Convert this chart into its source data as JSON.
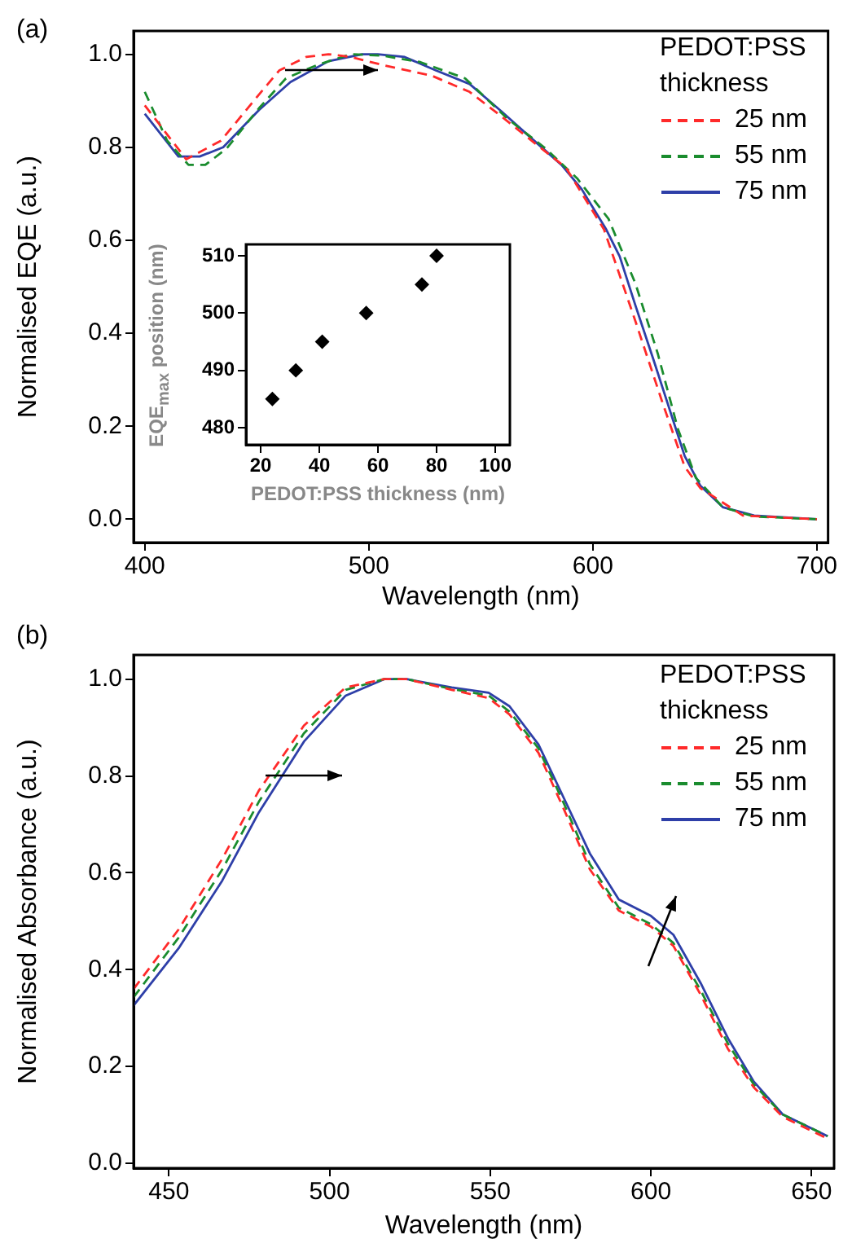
{
  "chart_data": [
    {
      "type": "line",
      "annotations": [
        "(a)"
      ],
      "xlabel": "Wavelength (nm)",
      "ylabel": "Normalised EQE (a.u.)",
      "legend_title": "PEDOT:PSS thickness",
      "legend": "top right",
      "grid": false,
      "xlim": [
        395,
        705
      ],
      "xticks": [
        400,
        500,
        600,
        700
      ],
      "ylim": [
        -0.05,
        1.05
      ],
      "yticks": [
        {
          "value": 0,
          "label": "0.0"
        },
        {
          "value": 0.2,
          "label": "0.2"
        },
        {
          "value": 0.4,
          "label": "0.4"
        },
        {
          "value": 0.6,
          "label": "0.6"
        },
        {
          "value": 0.8,
          "label": "0.8"
        },
        {
          "value": 1,
          "label": "1.0"
        }
      ],
      "series": [
        {
          "name": "25 nm",
          "color": "#ff2a2a",
          "line_style": "dashed",
          "x": [
            400,
            418.5,
            434,
            448,
            460,
            472,
            482,
            492,
            506,
            528,
            545,
            559,
            574,
            588,
            605,
            619,
            631,
            641,
            648,
            667,
            700
          ],
          "values": [
            0.89,
            0.774,
            0.814,
            0.896,
            0.965,
            0.994,
            1.0,
            0.994,
            0.977,
            0.954,
            0.919,
            0.867,
            0.809,
            0.756,
            0.623,
            0.426,
            0.252,
            0.113,
            0.067,
            0.008,
            0
          ]
        },
        {
          "name": "55 nm",
          "color": "#1a8c2e",
          "line_style": "dashed",
          "x": [
            400,
            410,
            419.5,
            427,
            436.5,
            451,
            463,
            477,
            492,
            506,
            523,
            543,
            562,
            579,
            593,
            607,
            619,
            629,
            638,
            646,
            658,
            672,
            700
          ],
          "values": [
            0.919,
            0.814,
            0.762,
            0.762,
            0.797,
            0.884,
            0.948,
            0.977,
            1.0,
            0.997,
            0.983,
            0.948,
            0.861,
            0.797,
            0.733,
            0.646,
            0.507,
            0.356,
            0.194,
            0.089,
            0.026,
            0.006,
            0
          ]
        },
        {
          "name": "75 nm",
          "color": "#2e3fa8",
          "line_style": "solid",
          "x": [
            400,
            415,
            424.5,
            435,
            451,
            465,
            482,
            497,
            504,
            516,
            530,
            545,
            559,
            571,
            586,
            595,
            606,
            612,
            619,
            627,
            634,
            641,
            648,
            658,
            672,
            700
          ],
          "values": [
            0.872,
            0.78,
            0.78,
            0.8,
            0.88,
            0.94,
            0.985,
            1.0,
            1.0,
            0.994,
            0.965,
            0.936,
            0.878,
            0.826,
            0.762,
            0.71,
            0.623,
            0.565,
            0.46,
            0.344,
            0.24,
            0.136,
            0.072,
            0.026,
            0.008,
            0
          ]
        }
      ]
    },
    {
      "type": "scatter",
      "xlabel": "PEDOT:PSS thickness (nm)",
      "ylabel": "EQE$_{max}$ position (nm)",
      "marker": "diamond",
      "grid": false,
      "xlim": [
        15,
        105
      ],
      "xticks": [
        20,
        40,
        60,
        80,
        100
      ],
      "ylim": [
        477,
        512
      ],
      "yticks": [
        480,
        490,
        500,
        510
      ],
      "series": [
        {
          "color": "#000000",
          "x": [
            24,
            32,
            41,
            56,
            75,
            80
          ],
          "values": [
            485,
            490,
            495,
            500,
            505,
            510
          ]
        }
      ]
    },
    {
      "type": "line",
      "annotations": [
        "(b)"
      ],
      "xlabel": "Wavelength (nm)",
      "ylabel": "Normalised Absorbance (a.u.)",
      "legend_title": "PEDOT:PSS thickness",
      "legend": "top right",
      "grid": false,
      "xlim": [
        439,
        657
      ],
      "xticks": [
        450,
        500,
        550,
        600,
        650
      ],
      "ylim": [
        -0.01,
        1.05
      ],
      "yticks": [
        {
          "value": 0,
          "label": "0.0"
        },
        {
          "value": 0.2,
          "label": "0.2"
        },
        {
          "value": 0.4,
          "label": "0.4"
        },
        {
          "value": 0.6,
          "label": "0.6"
        },
        {
          "value": 0.8,
          "label": "0.8"
        },
        {
          "value": 1,
          "label": "1.0"
        }
      ],
      "series": [
        {
          "name": "25 nm",
          "color": "#ff2a2a",
          "line_style": "dashed",
          "x": [
            439,
            453,
            466.6,
            478,
            492,
            505,
            517,
            524,
            538,
            549.5,
            556,
            565,
            573,
            581,
            590,
            600,
            607,
            615.5,
            624,
            632,
            641,
            655
          ],
          "values": [
            0.36,
            0.483,
            0.629,
            0.77,
            0.904,
            0.983,
            1.0,
            1.0,
            0.978,
            0.961,
            0.927,
            0.848,
            0.73,
            0.607,
            0.522,
            0.489,
            0.449,
            0.348,
            0.236,
            0.157,
            0.096,
            0.051
          ]
        },
        {
          "name": "55 nm",
          "color": "#1a8c2e",
          "line_style": "dashed",
          "x": [
            439,
            453,
            466.6,
            478,
            492,
            505,
            517,
            524,
            538,
            549.5,
            556,
            565,
            573,
            581,
            590,
            600,
            607,
            615.5,
            624,
            632,
            641,
            655
          ],
          "values": [
            0.343,
            0.466,
            0.607,
            0.747,
            0.888,
            0.978,
            1.0,
            1.0,
            0.98,
            0.966,
            0.933,
            0.857,
            0.742,
            0.618,
            0.528,
            0.494,
            0.455,
            0.357,
            0.247,
            0.163,
            0.101,
            0.056
          ]
        },
        {
          "name": "75 nm",
          "color": "#2e3fa8",
          "line_style": "solid",
          "x": [
            439,
            453,
            466.6,
            478,
            492,
            505,
            517,
            524,
            538,
            549.5,
            556,
            565,
            573,
            581,
            590,
            600,
            607,
            615.5,
            624,
            632,
            641,
            655
          ],
          "values": [
            0.326,
            0.444,
            0.584,
            0.725,
            0.871,
            0.966,
            1.0,
            1.0,
            0.983,
            0.972,
            0.944,
            0.865,
            0.753,
            0.64,
            0.545,
            0.511,
            0.472,
            0.372,
            0.258,
            0.169,
            0.101,
            0.056
          ]
        }
      ]
    }
  ]
}
